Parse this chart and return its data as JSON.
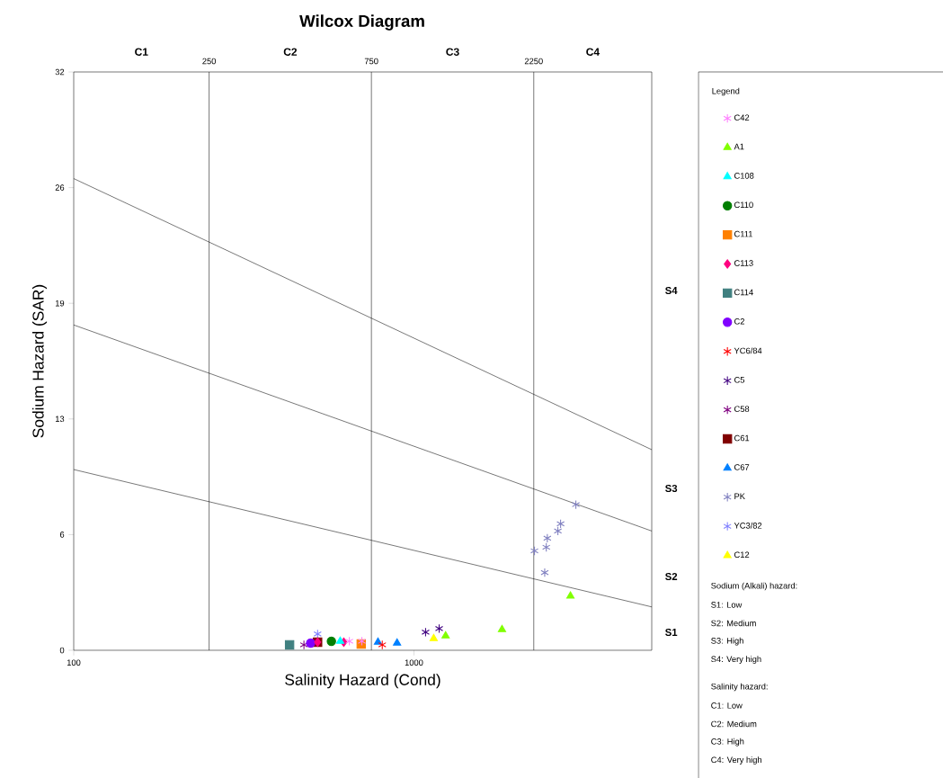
{
  "chart_data": {
    "type": "scatter",
    "title": "Wilcox Diagram",
    "xlabel": "Salinity Hazard (Cond)",
    "ylabel": "Sodium Hazard (SAR)",
    "legend_title": "Legend",
    "log": "x",
    "grid": false,
    "legend": "right",
    "xlim": [
      100,
      5000
    ],
    "xticks": [
      100,
      1000
    ],
    "ylim": [
      0,
      32
    ],
    "yticks": [
      0,
      {
        "value": 6.4,
        "label": "6"
      },
      {
        "value": 12.8,
        "label": "13"
      },
      {
        "value": 19.2,
        "label": "19"
      },
      {
        "value": 25.6,
        "label": "26"
      },
      32
    ],
    "ref_lines": [
      {
        "axis": "x",
        "value": 250,
        "label": "250",
        "color": "#000000"
      },
      {
        "axis": "x",
        "value": 750,
        "label": "750",
        "color": "#000000"
      },
      {
        "axis": "x",
        "value": 2250,
        "label": "2250",
        "color": "#000000"
      }
    ],
    "annotations": [
      "C1",
      "C2",
      "C3",
      "C4",
      "S4",
      "S3",
      "S2",
      "S1",
      "Sodium (Alkali) hazard:",
      "S1: Low",
      "S2: Medium",
      "S3: High",
      "S4: Very high",
      "Salinity hazard:",
      "C1: Low",
      "C2: Medium",
      "C3: High",
      "C4: Very high"
    ],
    "series": [
      {
        "type": "line",
        "color": "#000000",
        "marker": "none",
        "x": [
          100,
          5000
        ],
        "values": [
          10.0,
          2.4
        ]
      },
      {
        "type": "line",
        "color": "#000000",
        "marker": "none",
        "x": [
          100,
          5000
        ],
        "values": [
          18.0,
          6.6
        ]
      },
      {
        "type": "line",
        "color": "#000000",
        "marker": "none",
        "x": [
          100,
          5000
        ],
        "values": [
          26.1,
          11.1
        ]
      },
      {
        "name": "C42",
        "color": "#ff80ff",
        "marker": "cross",
        "x": [
          646,
          703
        ],
        "values": [
          0.5,
          0.5
        ]
      },
      {
        "name": "A1",
        "color": "#80ff00",
        "marker": "triangle",
        "x": [
          1239,
          1815,
          2884
        ],
        "values": [
          0.8,
          1.15,
          3.0
        ]
      },
      {
        "name": "C108",
        "color": "#00ffff",
        "marker": "triangle",
        "x": [
          607
        ],
        "values": [
          0.5
        ]
      },
      {
        "name": "C110",
        "color": "#007f00",
        "marker": "circle",
        "x": [
          572
        ],
        "values": [
          0.5
        ]
      },
      {
        "name": "C111",
        "color": "#ff8000",
        "marker": "square",
        "x": [
          700
        ],
        "values": [
          0.35
        ]
      },
      {
        "name": "C113",
        "color": "#ff0080",
        "marker": "diamond",
        "x": [
          521,
          622
        ],
        "values": [
          0.45,
          0.45
        ]
      },
      {
        "name": "C114",
        "color": "#408080",
        "marker": "square",
        "x": [
          431
        ],
        "values": [
          0.3
        ]
      },
      {
        "name": "C2",
        "color": "#8000ff",
        "marker": "circle",
        "x": [
          497
        ],
        "values": [
          0.4
        ]
      },
      {
        "name": "YC6/84",
        "color": "#ff0000",
        "marker": "cross",
        "x": [
          807
        ],
        "values": [
          0.3
        ]
      },
      {
        "name": "C5",
        "color": "#400080",
        "marker": "cross",
        "x": [
          1082,
          1186
        ],
        "values": [
          1.0,
          1.2
        ]
      },
      {
        "name": "C58",
        "color": "#800080",
        "marker": "cross",
        "x": [
          475
        ],
        "values": [
          0.3
        ]
      },
      {
        "name": "C61",
        "color": "#800000",
        "marker": "square",
        "x": [
          521
        ],
        "values": [
          0.45
        ]
      },
      {
        "name": "C67",
        "color": "#0080ff",
        "marker": "triangle",
        "x": [
          784,
          892
        ],
        "values": [
          0.45,
          0.4
        ]
      },
      {
        "name": "PK",
        "color": "#8080c0",
        "marker": "cross",
        "x": [
          2992,
          2698,
          2649,
          2466,
          2449,
          2261,
          2423
        ],
        "values": [
          8.06,
          7.0,
          6.6,
          6.2,
          5.7,
          5.5,
          4.3
        ]
      },
      {
        "name": "YC3/82",
        "color": "#8080ff",
        "marker": "cross",
        "x": [
          521
        ],
        "values": [
          0.9
        ]
      },
      {
        "name": "C12",
        "color": "#ffff00",
        "marker": "triangle",
        "x": [
          1143
        ],
        "values": [
          0.65
        ]
      }
    ]
  }
}
